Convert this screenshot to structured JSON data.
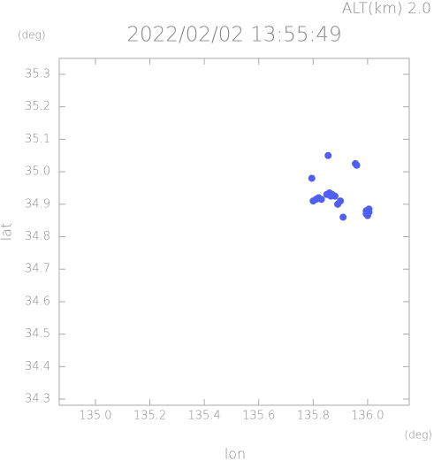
{
  "chart_data": {
    "type": "scatter",
    "title": "2022/02/02 13:55:49",
    "subtitle": "ALT(km) 2.0",
    "y_unit": "(deg)",
    "x_unit": "(deg)",
    "x_label": "lon",
    "y_label": "lat",
    "color": "#4f5ff2",
    "x": [
      135.81,
      135.82,
      135.83,
      135.85,
      135.86,
      135.87,
      135.88,
      135.865,
      135.9,
      135.91,
      135.89,
      135.995,
      136.005,
      136.0,
      135.995,
      136.005,
      135.955,
      135.96,
      135.855,
      135.795,
      135.8
    ],
    "y": [
      34.915,
      34.92,
      34.915,
      34.93,
      34.935,
      34.93,
      34.925,
      34.925,
      34.91,
      34.86,
      34.9,
      34.88,
      34.875,
      34.865,
      34.87,
      34.885,
      35.025,
      35.02,
      35.05,
      34.98,
      34.91
    ],
    "xlim": [
      134.867,
      136.153
    ],
    "ylim": [
      34.281,
      35.349
    ],
    "xticks": [
      {
        "value": 135,
        "label": "135.0"
      },
      135.2,
      135.4,
      135.6,
      135.8,
      {
        "value": 136,
        "label": "136.0"
      }
    ],
    "yticks": [
      34.3,
      34.4,
      34.5,
      34.6,
      34.7,
      34.8,
      34.9,
      {
        "value": 35,
        "label": "35.0"
      },
      35.1,
      35.2,
      35.3
    ]
  }
}
